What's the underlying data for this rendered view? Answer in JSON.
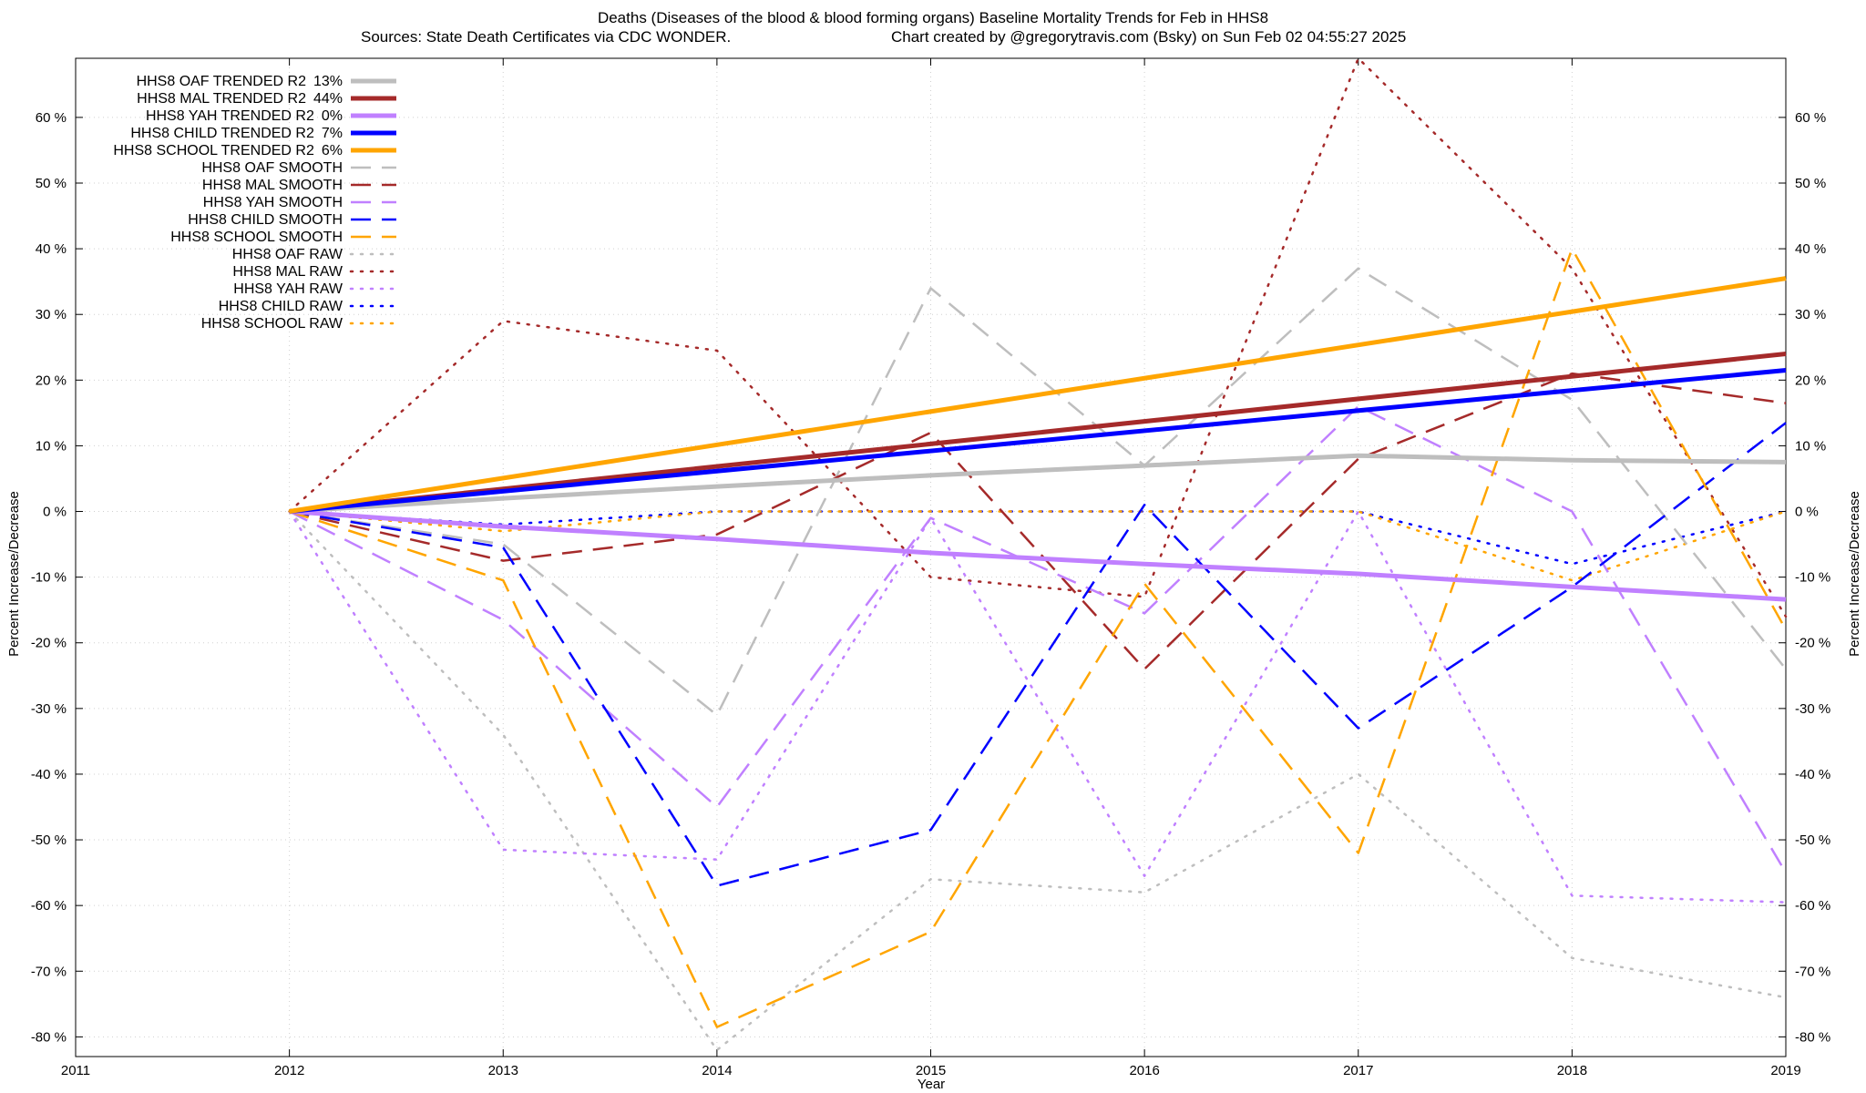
{
  "chart_data": {
    "type": "line",
    "title": "Deaths (Diseases of the blood & blood forming organs)  Baseline Mortality Trends for Feb in HHS8",
    "subtitle_left": "Sources: State Death Certificates via CDC WONDER.",
    "subtitle_right": "Chart created by @gregorytravis.com (Bsky) on Sun Feb 02 04:55:27 2025",
    "xlabel": "Year",
    "ylabel_left": "Percent Increase/Decrease",
    "ylabel_right": "Percent Increase/Decrease",
    "xlim": [
      2011,
      2019
    ],
    "ylim": [
      -83,
      69
    ],
    "x_ticks": [
      "2011",
      "2012",
      "2013",
      "2014",
      "2015",
      "2016",
      "2017",
      "2018",
      "2019"
    ],
    "y_ticks_left": [
      "-80 %",
      "-70 %",
      "-60 %",
      "-50 %",
      "-40 %",
      "-30 %",
      "-20 %",
      "-10 %",
      "0 %",
      "10 %",
      "20 %",
      "30 %",
      "40 %",
      "50 %",
      "60 %"
    ],
    "y_ticks_right": [
      "-80 %",
      "-70 %",
      "-60 %",
      "-50 %",
      "-40 %",
      "-30 %",
      "-20 %",
      "-10 %",
      "0 %",
      "10 %",
      "20 %",
      "30 %",
      "40 %",
      "50 %",
      "60 %"
    ],
    "grid": true,
    "legend_position": "top-left",
    "x": [
      2012,
      2013,
      2014,
      2015,
      2016,
      2017,
      2018,
      2019
    ],
    "series": [
      {
        "name": "HHS8 OAF TRENDED R2",
        "r2": "13%",
        "style": "solid",
        "color": "#bebebe",
        "x": [
          2012,
          2013,
          2014,
          2015,
          2016,
          2017,
          2018,
          2019
        ],
        "values": [
          0,
          2,
          3.8,
          5.5,
          7,
          8.5,
          7.8,
          7.5
        ]
      },
      {
        "name": "HHS8 MAL TRENDED R2",
        "r2": "44%",
        "style": "solid",
        "color": "#a52a2a",
        "x": [
          2012,
          2019
        ],
        "values": [
          0,
          24
        ]
      },
      {
        "name": "HHS8 YAH TRENDED R2",
        "r2": "0%",
        "style": "solid",
        "color": "#c080ff",
        "x": [
          2012,
          2013,
          2014,
          2015,
          2016,
          2017,
          2018,
          2019
        ],
        "values": [
          0,
          -2.3,
          -4.2,
          -6.3,
          -8,
          -9.5,
          -11.5,
          -13.4
        ]
      },
      {
        "name": "HHS8 CHILD TRENDED R2",
        "r2": "7%",
        "style": "solid",
        "color": "#0000ff",
        "x": [
          2012,
          2019
        ],
        "values": [
          0,
          21.5
        ]
      },
      {
        "name": "HHS8 SCHOOL TRENDED R2",
        "r2": "6%",
        "style": "solid",
        "color": "#ffa500",
        "x": [
          2012,
          2019
        ],
        "values": [
          0,
          35.5
        ]
      },
      {
        "name": "HHS8 OAF SMOOTH",
        "r2": "",
        "style": "dashed",
        "color": "#bebebe",
        "x": [
          2012,
          2013,
          2014,
          2015,
          2016,
          2017,
          2018,
          2019
        ],
        "values": [
          0,
          -5,
          -31,
          34,
          7,
          37,
          17,
          -24
        ]
      },
      {
        "name": "HHS8 MAL SMOOTH",
        "r2": "",
        "style": "dashed",
        "color": "#a52a2a",
        "x": [
          2012,
          2013,
          2014,
          2015,
          2016,
          2017,
          2018,
          2019
        ],
        "values": [
          0,
          -7.5,
          -3.5,
          12,
          -24,
          8,
          21,
          16.5
        ]
      },
      {
        "name": "HHS8 YAH SMOOTH",
        "r2": "",
        "style": "dashed",
        "color": "#c080ff",
        "x": [
          2012,
          2013,
          2014,
          2015,
          2016,
          2017,
          2018,
          2019
        ],
        "values": [
          0,
          -16.5,
          -45,
          -1,
          -15.5,
          16,
          0,
          -55
        ]
      },
      {
        "name": "HHS8 CHILD SMOOTH",
        "r2": "",
        "style": "dashed",
        "color": "#0000ff",
        "x": [
          2012,
          2013,
          2014,
          2015,
          2016,
          2017,
          2018,
          2019
        ],
        "values": [
          0,
          -5.5,
          -57,
          -48.5,
          1,
          -33,
          -11.5,
          13.5
        ]
      },
      {
        "name": "HHS8 SCHOOL SMOOTH",
        "r2": "",
        "style": "dashed",
        "color": "#ffa500",
        "x": [
          2012,
          2013,
          2014,
          2015,
          2016,
          2017,
          2018,
          2019
        ],
        "values": [
          0,
          -10.5,
          -78.5,
          -64,
          -11,
          -52,
          40,
          -18
        ]
      },
      {
        "name": "HHS8 OAF RAW",
        "r2": "",
        "style": "dotted",
        "color": "#bebebe",
        "x": [
          2012,
          2013,
          2014,
          2015,
          2016,
          2017,
          2018,
          2019
        ],
        "values": [
          0,
          -34,
          -82,
          -56,
          -58,
          -40,
          -68,
          -74
        ]
      },
      {
        "name": "HHS8 MAL RAW",
        "r2": "",
        "style": "dotted",
        "color": "#a52a2a",
        "x": [
          2012,
          2013,
          2014,
          2015,
          2016,
          2017,
          2018,
          2019
        ],
        "values": [
          0,
          29,
          24.5,
          -10,
          -13,
          69,
          37,
          -16
        ]
      },
      {
        "name": "HHS8 YAH RAW",
        "r2": "",
        "style": "dotted",
        "color": "#c080ff",
        "x": [
          2012,
          2013,
          2014,
          2015,
          2016,
          2017,
          2018,
          2019
        ],
        "values": [
          0,
          -51.5,
          -53,
          -1,
          -55.5,
          0,
          -58.5,
          -59.5
        ]
      },
      {
        "name": "HHS8 CHILD RAW",
        "r2": "",
        "style": "dotted",
        "color": "#0000ff",
        "x": [
          2012,
          2013,
          2014,
          2015,
          2016,
          2017,
          2018,
          2019
        ],
        "values": [
          0,
          -2,
          0,
          0,
          0,
          0,
          -8,
          0
        ]
      },
      {
        "name": "HHS8 SCHOOL RAW",
        "r2": "",
        "style": "dotted",
        "color": "#ffa500",
        "x": [
          2012,
          2013,
          2014,
          2015,
          2016,
          2017,
          2018,
          2019
        ],
        "values": [
          0,
          -3,
          0,
          0,
          0,
          0,
          -10.5,
          0
        ]
      }
    ]
  }
}
